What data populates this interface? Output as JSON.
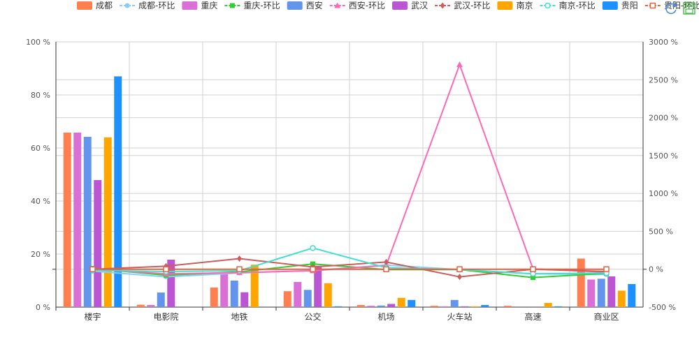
{
  "toolbox": {
    "refresh_icon": "refresh-icon",
    "save_icon": "save-image-icon"
  },
  "chart_data": {
    "type": "bar",
    "categories": [
      "楼宇",
      "电影院",
      "地铁",
      "公交",
      "机场",
      "火车站",
      "高速",
      "商业区"
    ],
    "y_left": {
      "min": 0,
      "max": 100,
      "ticks": [
        "0 %",
        "20 %",
        "40 %",
        "60 %",
        "80 %",
        "100 %"
      ]
    },
    "y_right": {
      "min": -500,
      "max": 3000,
      "ticks": [
        "-500 %",
        "0 %",
        "500 %",
        "1000 %",
        "1500 %",
        "2000 %",
        "2500 %",
        "3000 %"
      ]
    },
    "grid": true,
    "legend_position": "top",
    "bar_series": [
      {
        "name": "成都",
        "color": "#ff7f50",
        "values": [
          65.8,
          0.9,
          7.4,
          6.0,
          0.8,
          0.5,
          0.5,
          18.3
        ]
      },
      {
        "name": "重庆",
        "color": "#da70d6",
        "values": [
          65.8,
          0.8,
          12.5,
          9.5,
          0.5,
          0.3,
          0.0,
          10.4
        ]
      },
      {
        "name": "西安",
        "color": "#6495ed",
        "values": [
          64.2,
          5.5,
          10.0,
          6.5,
          0.6,
          2.7,
          0.0,
          10.7
        ]
      },
      {
        "name": "武汉",
        "color": "#ba55d3",
        "values": [
          47.9,
          17.9,
          5.6,
          15.6,
          1.2,
          0.3,
          0.0,
          11.6
        ]
      },
      {
        "name": "南京",
        "color": "#ffa500",
        "values": [
          64.0,
          0.0,
          16.0,
          9.0,
          3.5,
          0.3,
          1.6,
          6.2
        ]
      },
      {
        "name": "贵阳",
        "color": "#1e90ff",
        "values": [
          87.0,
          0.0,
          0.0,
          0.3,
          2.7,
          0.8,
          0.3,
          8.7
        ]
      }
    ],
    "line_series": [
      {
        "name": "成都-环比",
        "color": "#87cefa",
        "marker": "circle",
        "values": [
          -25,
          -100,
          -50,
          -15,
          55,
          -5,
          -60,
          -70
        ]
      },
      {
        "name": "重庆-环比",
        "color": "#32cd32",
        "marker": "square",
        "values": [
          10,
          -80,
          -35,
          70,
          -5,
          -5,
          -110,
          -55
        ]
      },
      {
        "name": "西安-环比",
        "color": "#ff69b4",
        "marker": "triangle",
        "values": [
          0,
          -60,
          -45,
          -20,
          50,
          2700,
          5,
          -40
        ]
      },
      {
        "name": "武汉-环比",
        "color": "#cd5c5c",
        "marker": "diamond",
        "values": [
          0,
          40,
          140,
          30,
          95,
          -100,
          0,
          -30
        ]
      },
      {
        "name": "南京-环比",
        "color": "#40e0d0",
        "marker": "emptyCircle",
        "values": [
          -15,
          -30,
          -20,
          280,
          20,
          -5,
          -60,
          -50
        ]
      },
      {
        "name": "贵阳-环比",
        "color": "#e06343",
        "marker": "emptySquare",
        "values": [
          0,
          0,
          0,
          0,
          0,
          0,
          0,
          0
        ]
      }
    ]
  }
}
